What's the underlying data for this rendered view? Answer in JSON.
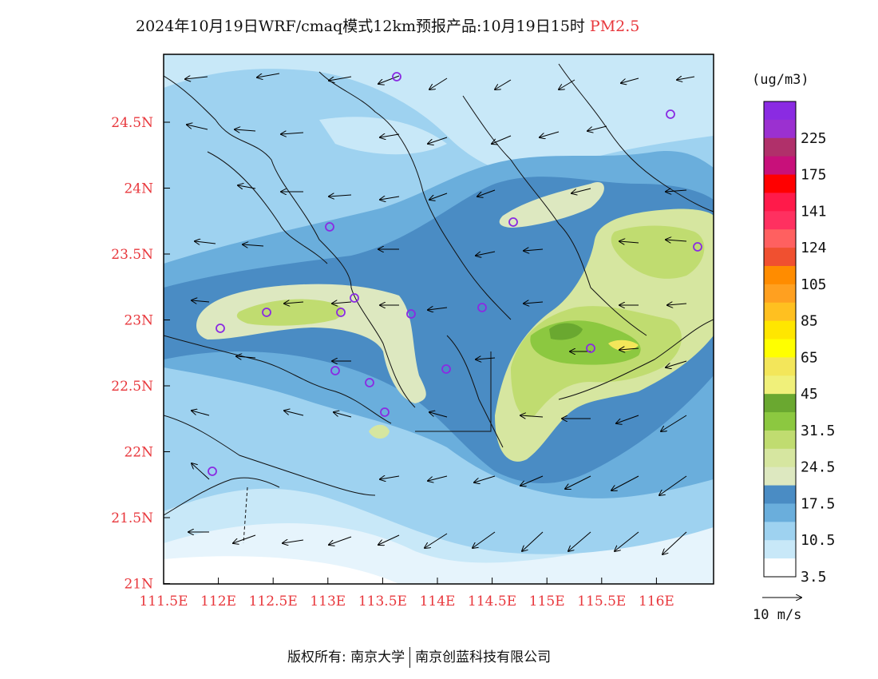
{
  "title": {
    "text": "2024年10月19日WRF/cmaq模式12km预报产品:10月19日15时",
    "pollutant": "PM2.5"
  },
  "axes": {
    "lon_ticks": [
      "111.5E",
      "112E",
      "112.5E",
      "113E",
      "113.5E",
      "114E",
      "114.5E",
      "115E",
      "115.5E",
      "116E"
    ],
    "lat_ticks": [
      "24.5N",
      "24N",
      "23.5N",
      "23N",
      "22.5N",
      "22N",
      "21.5N",
      "21N"
    ]
  },
  "legend": {
    "unit": "(ug/m3)",
    "labels": [
      "225",
      "175",
      "141",
      "124",
      "105",
      "85",
      "65",
      "45",
      "31.5",
      "24.5",
      "17.5",
      "10.5",
      "3.5"
    ],
    "colors": [
      "#8a2be2",
      "#9b30d0",
      "#b0306a",
      "#c8107a",
      "#ff0000",
      "#ff1a4a",
      "#ff3060",
      "#ff6060",
      "#f05030",
      "#ff8c00",
      "#ffa020",
      "#ffc020",
      "#ffe600",
      "#ffff00",
      "#f3e65a",
      "#f0f07a",
      "#6aa830",
      "#8cc840",
      "#c0dc70",
      "#d6e6a0",
      "#dde8c0",
      "#4a8cc4",
      "#6aaedc",
      "#9ed2f0",
      "#c8e8f8",
      "#ffffff"
    ]
  },
  "wind_reference": "10 m/s",
  "footer": {
    "left": "版权所有: 南京大学",
    "right": "南京创蓝科技有限公司"
  }
}
